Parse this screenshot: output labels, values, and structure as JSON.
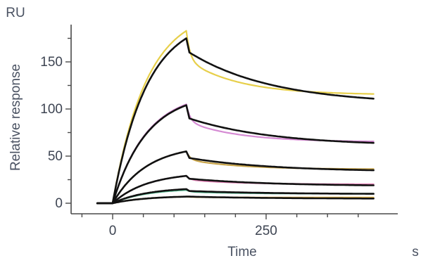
{
  "chart_data": {
    "type": "line",
    "title": "",
    "xlabel": "Time",
    "x_unit": "s",
    "ylabel": "Relative response",
    "y_unit": "RU",
    "xlim": [
      -70,
      440
    ],
    "ylim": [
      -10,
      190
    ],
    "x_ticks": [
      0,
      250
    ],
    "x_minor_ticks": [
      -50,
      50,
      100,
      150,
      200,
      300,
      350,
      400
    ],
    "y_ticks": [
      0,
      50,
      100,
      150
    ],
    "y_minor_ticks": [
      25,
      75,
      125,
      175
    ],
    "grid": false,
    "legend": "none",
    "colors": {
      "axis": "#4a4a4a",
      "fit": "#111111",
      "series": [
        "#e7cf4a",
        "#d58ad3",
        "#c9a54a",
        "#e07fb4",
        "#4fb58a",
        "#e8b84a"
      ]
    },
    "x_start": -25,
    "injection_start": 0,
    "injection_end": 120,
    "x_end": 425,
    "series": [
      {
        "peak": 183,
        "dissociation_end": 115
      },
      {
        "peak": 105,
        "dissociation_end": 65
      },
      {
        "peak": 55,
        "dissociation_end": 36
      },
      {
        "peak": 29,
        "dissociation_end": 20
      },
      {
        "peak": 14,
        "dissociation_end": 10
      },
      {
        "peak": 7,
        "dissociation_end": 6
      }
    ],
    "fits": [
      {
        "peak": 175,
        "plateau_start": 160,
        "dissociation_end": 111
      },
      {
        "peak": 104,
        "plateau_start": 90,
        "dissociation_end": 64
      },
      {
        "peak": 55,
        "plateau_start": 48,
        "dissociation_end": 35
      },
      {
        "peak": 29,
        "plateau_start": 26,
        "dissociation_end": 19
      },
      {
        "peak": 15,
        "plateau_start": 13,
        "dissociation_end": 10
      },
      {
        "peak": 7,
        "plateau_start": 7,
        "dissociation_end": 5
      }
    ]
  }
}
